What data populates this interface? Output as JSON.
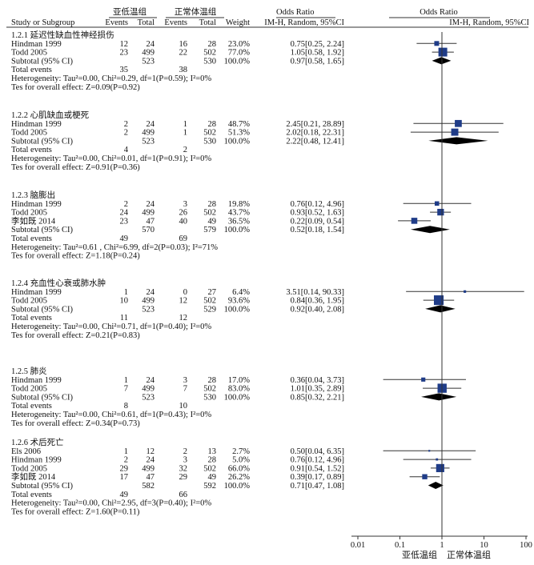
{
  "colors": {
    "marker": "#1f3c88",
    "line": "#333333",
    "text": "#111111"
  },
  "chart_data": {
    "type": "forest",
    "axis": {
      "scale": "log",
      "ticks": [
        0.01,
        0.1,
        1,
        10,
        100
      ],
      "tick_labels": [
        "0.01",
        "0.1",
        "1",
        "10",
        "100"
      ],
      "left_label": "亚低温组",
      "right_label": "正常体温组"
    },
    "header": {
      "group1_title": "亚低温组",
      "group2_title": "正常体温组",
      "study": "Study or Subgroup",
      "events": "Events",
      "total": "Total",
      "weight": "Weight",
      "or_title": "Odds Ratio",
      "or_sub": "IM-H, Random, 95%CI",
      "plot_title": "Odds Ratio",
      "plot_sub": "IM-H, Random, 95%CI"
    },
    "subgroups": [
      {
        "title": "1.2.1 延迟性缺血性神经损伤",
        "studies": [
          {
            "name": "Hindman 1999",
            "e1": "12",
            "n1": "24",
            "e2": "16",
            "n2": "28",
            "weight": "23.0%",
            "ci_text": "0.75[0.25, 2.24]",
            "or": 0.75,
            "lo": 0.25,
            "hi": 2.24
          },
          {
            "name": "Todd 2005",
            "e1": "23",
            "n1": "499",
            "e2": "22",
            "n2": "502",
            "weight": "77.0%",
            "ci_text": "1.05[0.58, 1.92]",
            "or": 1.05,
            "lo": 0.58,
            "hi": 1.92
          }
        ],
        "subtotal": {
          "label": "Subtotal (95% CI)",
          "n1": "523",
          "n2": "530",
          "weight": "100.0%",
          "ci_text": "0.97[0.58, 1.65]",
          "or": 0.97,
          "lo": 0.58,
          "hi": 1.65
        },
        "total_events": {
          "label": "Total events",
          "e1": "35",
          "e2": "38"
        },
        "heterogeneity": "Heterogeneity: Tau²=0.00, Chi²=0.29, df=1(P=0.59); I²=0%",
        "overall": "Tes for overall effect: Z=0.09(P=0.92)"
      },
      {
        "title": "1.2.2 心肌缺血或梗死",
        "studies": [
          {
            "name": "Hindman 1999",
            "e1": "2",
            "n1": "24",
            "e2": "1",
            "n2": "28",
            "weight": "48.7%",
            "ci_text": "2.45[0.21, 28.89]",
            "or": 2.45,
            "lo": 0.21,
            "hi": 28.89
          },
          {
            "name": "Todd 2005",
            "e1": "2",
            "n1": "499",
            "e2": "1",
            "n2": "502",
            "weight": "51.3%",
            "ci_text": "2.02[0.18, 22.31]",
            "or": 2.02,
            "lo": 0.18,
            "hi": 22.31
          }
        ],
        "subtotal": {
          "label": "Subtotal (95% CI)",
          "n1": "523",
          "n2": "530",
          "weight": "100.0%",
          "ci_text": "2.22[0.48, 12.41]",
          "or": 2.22,
          "lo": 0.48,
          "hi": 12.41
        },
        "total_events": {
          "label": "Total events",
          "e1": "4",
          "e2": "2"
        },
        "heterogeneity": "Heterogeneity: Tau²=0.00, Chi²=0.01, df=1(P=0.91); I²=0%",
        "overall": "Tes for overall effect: Z=0.91(P=0.36)"
      },
      {
        "title": "1.2.3 脑膨出",
        "studies": [
          {
            "name": "Hindman 1999",
            "e1": "2",
            "n1": "24",
            "e2": "3",
            "n2": "28",
            "weight": "19.8%",
            "ci_text": "0.76[0.12, 4.96]",
            "or": 0.76,
            "lo": 0.12,
            "hi": 4.96
          },
          {
            "name": "Todd 2005",
            "e1": "24",
            "n1": "499",
            "e2": "26",
            "n2": "502",
            "weight": "43.7%",
            "ci_text": "0.93[0.52, 1.63]",
            "or": 0.93,
            "lo": 0.52,
            "hi": 1.63
          },
          {
            "name": "李如既 2014",
            "e1": "23",
            "n1": "47",
            "e2": "40",
            "n2": "49",
            "weight": "36.5%",
            "ci_text": "0.22[0.09, 0.54]",
            "or": 0.22,
            "lo": 0.09,
            "hi": 0.54
          }
        ],
        "subtotal": {
          "label": "Subtotal (95% CI)",
          "n1": "570",
          "n2": "579",
          "weight": "100.0%",
          "ci_text": "0.52[0.18, 1.54]",
          "or": 0.52,
          "lo": 0.18,
          "hi": 1.54
        },
        "total_events": {
          "label": "Total events",
          "e1": "49",
          "e2": "69"
        },
        "heterogeneity": "Heterogeneity: Tau²=0.61 , Chi²=6.99, df=2(P=0.03); I²=71%",
        "overall": "Tes for overall effect: Z=1.18(P=0.24)"
      },
      {
        "title": "1.2.4 充血性心衰或肺水肿",
        "studies": [
          {
            "name": "Hindman 1999",
            "e1": "1",
            "n1": "24",
            "e2": "0",
            "n2": "27",
            "weight": "6.4%",
            "ci_text": "3.51[0.14, 90.33]",
            "or": 3.51,
            "lo": 0.14,
            "hi": 90.33
          },
          {
            "name": "Todd 2005",
            "e1": "10",
            "n1": "499",
            "e2": "12",
            "n2": "502",
            "weight": "93.6%",
            "ci_text": "0.84[0.36, 1.95]",
            "or": 0.84,
            "lo": 0.36,
            "hi": 1.95
          }
        ],
        "subtotal": {
          "label": "Subtotal (95% CI)",
          "n1": "523",
          "n2": "529",
          "weight": "100.0%",
          "ci_text": "0.92[0.40, 2.08]",
          "or": 0.92,
          "lo": 0.4,
          "hi": 2.08
        },
        "total_events": {
          "label": "Total events",
          "e1": "11",
          "e2": "12"
        },
        "heterogeneity": "Heterogeneity: Tau²=0.00, Chi²=0.71, df=1(P=0.40); I²=0%",
        "overall": "Tes for overall effect: Z=0.21(P=0.83)"
      },
      {
        "title": "1.2.5 肺炎",
        "studies": [
          {
            "name": "Hindman 1999",
            "e1": "1",
            "n1": "24",
            "e2": "3",
            "n2": "28",
            "weight": "17.0%",
            "ci_text": "0.36[0.04, 3.73]",
            "or": 0.36,
            "lo": 0.04,
            "hi": 3.73
          },
          {
            "name": "Todd 2005",
            "e1": "7",
            "n1": "499",
            "e2": "7",
            "n2": "502",
            "weight": "83.0%",
            "ci_text": "1.01[0.35, 2.89]",
            "or": 1.01,
            "lo": 0.35,
            "hi": 2.89
          }
        ],
        "subtotal": {
          "label": "Subtotal (95% CI)",
          "n1": "523",
          "n2": "530",
          "weight": "100.0%",
          "ci_text": "0.85[0.32, 2.21]",
          "or": 0.85,
          "lo": 0.32,
          "hi": 2.21
        },
        "total_events": {
          "label": "Total events",
          "e1": "8",
          "e2": "10"
        },
        "heterogeneity": "Heterogeneity: Tau²=0.00, Chi²=0.61, df=1(P=0.43); I²=0%",
        "overall": "Tes for overall effect: Z=0.34(P=0.73)"
      },
      {
        "title": "1.2.6 术后死亡",
        "studies": [
          {
            "name": "Els 2006",
            "e1": "1",
            "n1": "12",
            "e2": "2",
            "n2": "13",
            "weight": "2.7%",
            "ci_text": "0.50[0.04, 6.35]",
            "or": 0.5,
            "lo": 0.04,
            "hi": 6.35
          },
          {
            "name": "Hindman 1999",
            "e1": "2",
            "n1": "24",
            "e2": "3",
            "n2": "28",
            "weight": "5.0%",
            "ci_text": "0.76[0.12, 4.96]",
            "or": 0.76,
            "lo": 0.12,
            "hi": 4.96
          },
          {
            "name": "Todd 2005",
            "e1": "29",
            "n1": "499",
            "e2": "32",
            "n2": "502",
            "weight": "66.0%",
            "ci_text": "0.91[0.54, 1.52]",
            "or": 0.91,
            "lo": 0.54,
            "hi": 1.52
          },
          {
            "name": "李如既 2014",
            "e1": "17",
            "n1": "47",
            "e2": "29",
            "n2": "49",
            "weight": "26.2%",
            "ci_text": "0.39[0.17, 0.89]",
            "or": 0.39,
            "lo": 0.17,
            "hi": 0.89
          }
        ],
        "subtotal": {
          "label": "Subtotal (95% CI)",
          "n1": "582",
          "n2": "592",
          "weight": "100.0%",
          "ci_text": "0.71[0.47, 1.08]",
          "or": 0.71,
          "lo": 0.47,
          "hi": 1.08
        },
        "total_events": {
          "label": "Total events",
          "e1": "49",
          "e2": "66"
        },
        "heterogeneity": "Heterogeneity: Tau²=0.00, Chi²=2.95, df=3(P=0.40); I²=0%",
        "overall": "Tes for overall effect: Z=1.60(P=0.11)"
      }
    ]
  }
}
